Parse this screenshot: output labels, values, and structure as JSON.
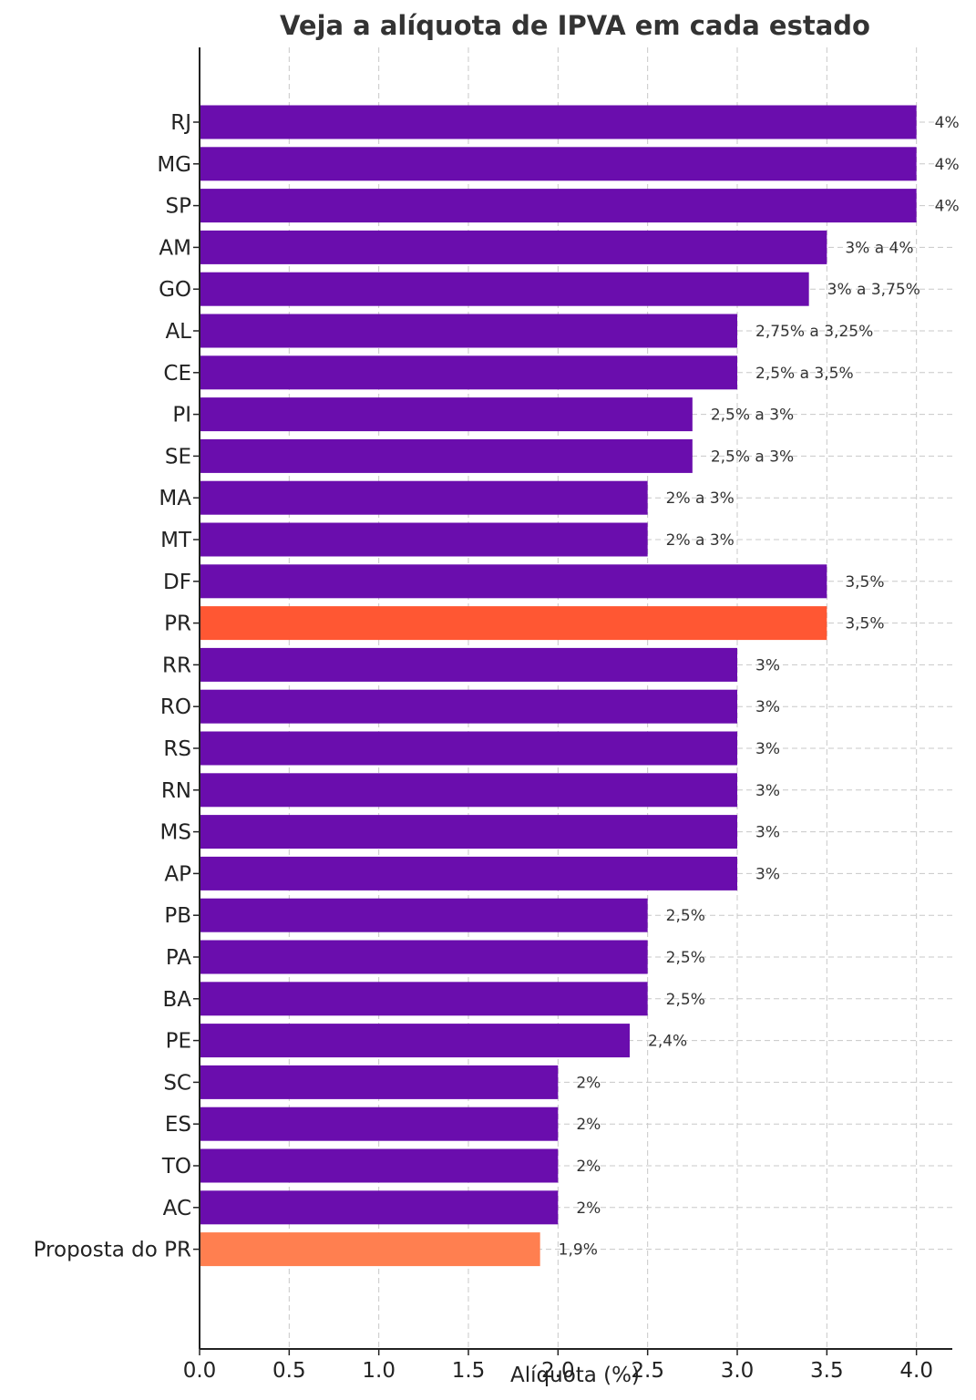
{
  "chart_data": {
    "type": "bar",
    "orientation": "horizontal",
    "title": "Veja a alíquota de IPVA em cada estado",
    "xlabel": "Alíquota (%)",
    "ylabel": "",
    "xlim": [
      0,
      4.2
    ],
    "xticks": [
      "0.0",
      "0.5",
      "1.0",
      "1.5",
      "2.0",
      "2.5",
      "3.0",
      "3.5",
      "4.0"
    ],
    "grid": true,
    "colors": {
      "default": "#6a0dad",
      "highlight": "#ff5733",
      "proposal": "#ff7f50"
    },
    "categories": [
      "RJ",
      "MG",
      "SP",
      "AM",
      "GO",
      "AL",
      "CE",
      "PI",
      "SE",
      "MA",
      "MT",
      "DF",
      "PR",
      "RR",
      "RO",
      "RS",
      "RN",
      "MS",
      "AP",
      "PB",
      "PA",
      "BA",
      "PE",
      "SC",
      "ES",
      "TO",
      "AC",
      "Proposta do PR"
    ],
    "values": [
      4.0,
      4.0,
      4.0,
      3.5,
      3.4,
      3.0,
      3.0,
      2.75,
      2.75,
      2.5,
      2.5,
      3.5,
      3.5,
      3.0,
      3.0,
      3.0,
      3.0,
      3.0,
      3.0,
      2.5,
      2.5,
      2.5,
      2.4,
      2.0,
      2.0,
      2.0,
      2.0,
      1.9
    ],
    "labels": [
      "4%",
      "4%",
      "4%",
      "3% a 4%",
      "3% a 3,75%",
      "2,75% a 3,25%",
      "2,5% a 3,5%",
      "2,5% a 3%",
      "2,5% a 3%",
      "2% a 3%",
      "2% a 3%",
      "3,5%",
      "3,5%",
      "3%",
      "3%",
      "3%",
      "3%",
      "3%",
      "3%",
      "2,5%",
      "2,5%",
      "2,5%",
      "2,4%",
      "2%",
      "2%",
      "2%",
      "2%",
      "1,9%"
    ],
    "bar_colors": [
      "default",
      "default",
      "default",
      "default",
      "default",
      "default",
      "default",
      "default",
      "default",
      "default",
      "default",
      "default",
      "highlight",
      "default",
      "default",
      "default",
      "default",
      "default",
      "default",
      "default",
      "default",
      "default",
      "default",
      "default",
      "default",
      "default",
      "default",
      "proposal"
    ]
  }
}
